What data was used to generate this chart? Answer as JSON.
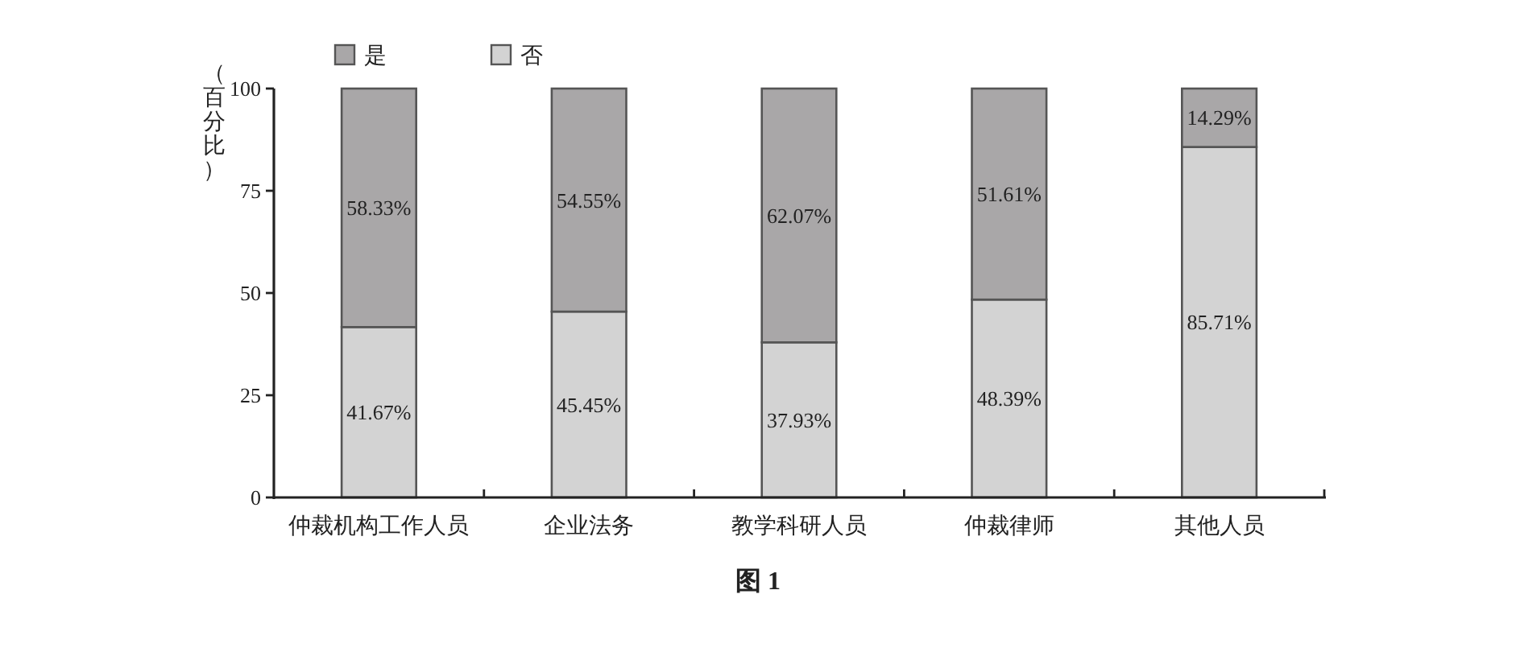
{
  "chart_data": {
    "type": "bar",
    "stacked": true,
    "title": "图 1",
    "ylabel": "（百分比）",
    "categories": [
      "仲裁机构工作人员",
      "企业法务",
      "教学科研人员",
      "仲裁律师",
      "其他人员"
    ],
    "series": [
      {
        "name": "否",
        "color": "#d3d3d3",
        "values": [
          41.67,
          45.45,
          37.93,
          48.39,
          85.71
        ],
        "value_labels": [
          "41.67%",
          "45.45%",
          "37.93%",
          "48.39%",
          "85.71%"
        ]
      },
      {
        "name": "是",
        "color": "#a9a7a8",
        "values": [
          58.33,
          54.55,
          62.07,
          51.61,
          14.29
        ],
        "value_labels": [
          "58.33%",
          "54.55%",
          "62.07%",
          "51.61%",
          "14.29%"
        ]
      }
    ],
    "ylim": [
      0,
      100
    ],
    "yticks": [
      0,
      25,
      50,
      75,
      100
    ],
    "legend": "top left"
  }
}
